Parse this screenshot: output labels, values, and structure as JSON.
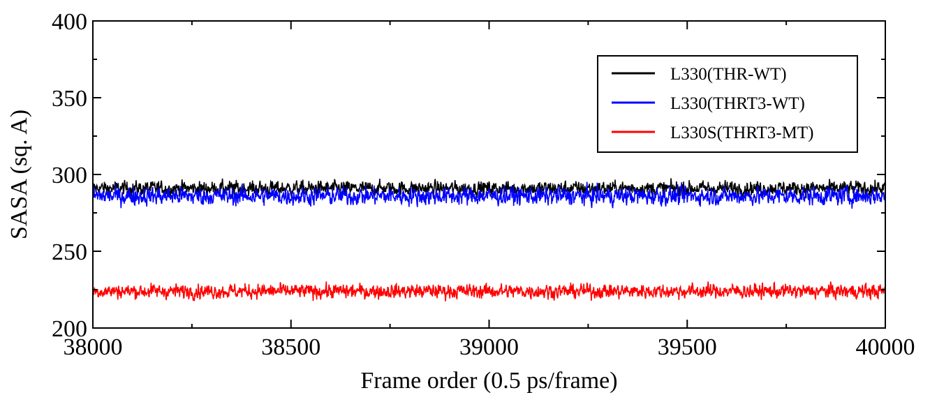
{
  "chart_data": {
    "type": "line",
    "title": "",
    "xlabel": "Frame order (0.5 ps/frame)",
    "ylabel": "SASA (sq. A)",
    "xlim": [
      38000,
      40000
    ],
    "ylim": [
      200,
      400
    ],
    "xticks": [
      38000,
      38500,
      39000,
      39500,
      40000
    ],
    "yticks": [
      200,
      250,
      300,
      350,
      400
    ],
    "xtick_labels": [
      "38000",
      "38500",
      "39000",
      "39500",
      "40000"
    ],
    "ytick_labels": [
      "200",
      "250",
      "300",
      "350",
      "400"
    ],
    "grid": false,
    "legend_position": "top-right",
    "series": [
      {
        "name": "L330(THR-WT)",
        "color": "#000000",
        "mean": 291,
        "amplitude": 4,
        "values_summary": "fluctuates around 291 (range ~284-300) across frames 38000-40000"
      },
      {
        "name": "L330(THRT3-WT)",
        "color": "#0000ff",
        "mean": 286,
        "amplitude": 5,
        "values_summary": "fluctuates around 286 (range ~274-297) across frames 38000-40000"
      },
      {
        "name": "L330S(THRT3-MT)",
        "color": "#ff0000",
        "mean": 224,
        "amplitude": 4,
        "values_summary": "fluctuates around 224 (range ~214-233) across frames 38000-40000"
      }
    ]
  }
}
